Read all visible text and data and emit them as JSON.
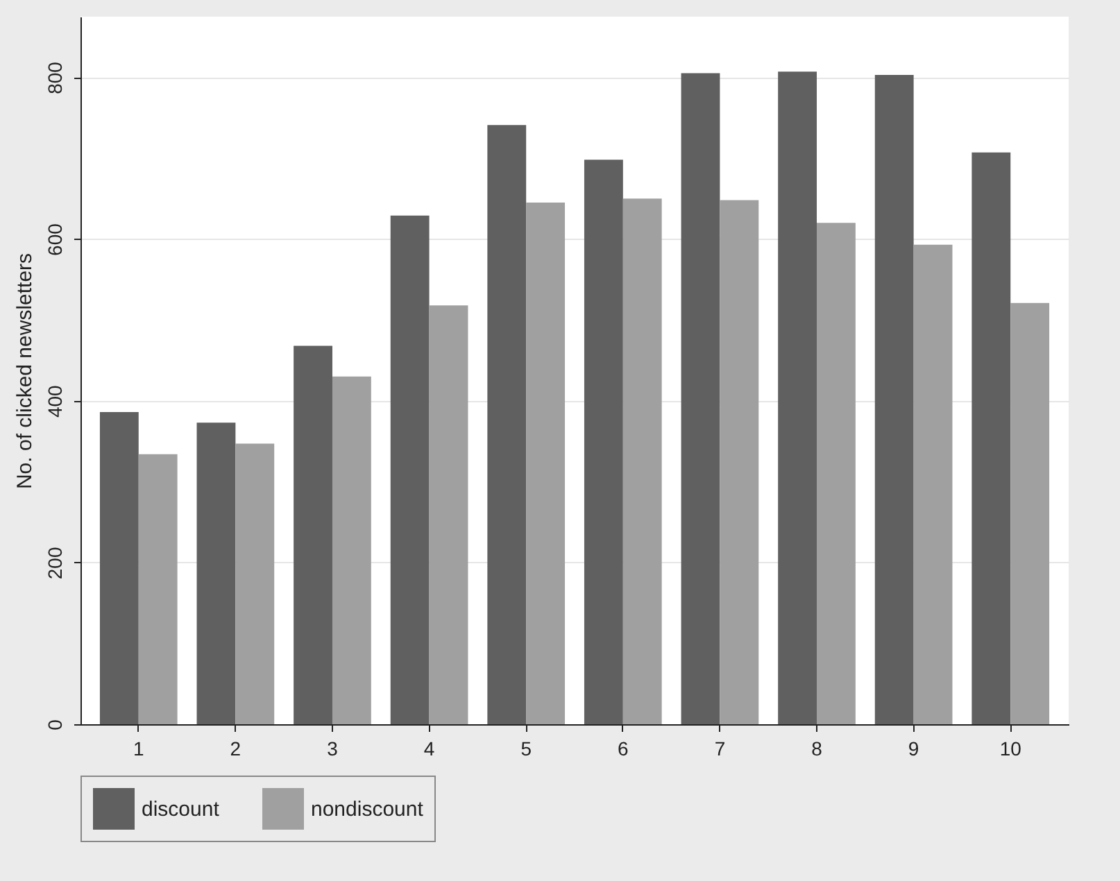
{
  "chart_data": {
    "type": "bar",
    "ylabel": "No. of clicked newsletters",
    "categories": [
      "1",
      "2",
      "3",
      "4",
      "5",
      "6",
      "7",
      "8",
      "9",
      "10"
    ],
    "series": [
      {
        "name": "discount",
        "color": "#606060",
        "values": [
          386,
          373,
          468,
          629,
          741,
          698,
          805,
          807,
          803,
          707
        ]
      },
      {
        "name": "nondiscount",
        "color": "#a0a0a0",
        "values": [
          334,
          347,
          430,
          518,
          645,
          650,
          648,
          620,
          593,
          521
        ]
      }
    ],
    "ylim": [
      0,
      875
    ],
    "yticks": [
      0,
      200,
      400,
      600,
      800
    ],
    "grid": "y",
    "legend": "bottom"
  }
}
